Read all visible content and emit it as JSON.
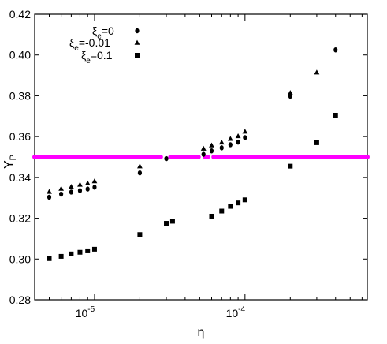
{
  "chart_data": {
    "type": "scatter",
    "xlabel": "η",
    "ylabel": "Y_P",
    "xscale": "log",
    "xlim": [
      4e-06,
      0.00065
    ],
    "ylim": [
      0.28,
      0.42
    ],
    "yticks": [
      0.28,
      0.3,
      0.32,
      0.34,
      0.36,
      0.38,
      0.4,
      0.42
    ],
    "ytick_labels": [
      "0.28",
      "0.30",
      "0.32",
      "0.34",
      "0.36",
      "0.38",
      "0.40",
      "0.42"
    ],
    "xticks": [
      {
        "value": 1e-05,
        "base": "10",
        "exp": "-5"
      },
      {
        "value": 0.0001,
        "base": "10",
        "exp": "-4"
      }
    ],
    "legend_placement": "top-left",
    "series": [
      {
        "name": "ξe=0",
        "legend": {
          "base": "ξ",
          "sub": "e",
          "rest": "=0"
        },
        "marker": "circle",
        "x": [
          5e-06,
          6e-06,
          7e-06,
          8e-06,
          9e-06,
          1e-05,
          2e-05,
          3e-05,
          5.3e-05,
          6e-05,
          7e-05,
          8e-05,
          9e-05,
          0.0001,
          0.0002,
          0.0004
        ],
        "y": [
          0.3303,
          0.3318,
          0.3328,
          0.3335,
          0.3343,
          0.3352,
          0.3422,
          0.3492,
          0.3513,
          0.353,
          0.3545,
          0.356,
          0.3573,
          0.3595,
          0.3798,
          0.4025
        ]
      },
      {
        "name": "ξe=-0.01",
        "legend": {
          "base": "ξ",
          "sub": "e",
          "rest": "=-0.01"
        },
        "marker": "triangle",
        "x": [
          5e-06,
          6e-06,
          7e-06,
          8e-06,
          9e-06,
          1e-05,
          2e-05,
          5.3e-05,
          6e-05,
          7e-05,
          8e-05,
          9e-05,
          0.0001,
          0.0002,
          0.0003
        ],
        "y": [
          0.333,
          0.3345,
          0.3355,
          0.3365,
          0.3372,
          0.3382,
          0.3455,
          0.3542,
          0.3558,
          0.3572,
          0.359,
          0.3603,
          0.3625,
          0.3815,
          0.3915
        ]
      },
      {
        "name": "ξe=0.1",
        "legend": {
          "base": "ξ",
          "sub": "e",
          "rest": "=0.1"
        },
        "marker": "square",
        "x": [
          5e-06,
          6e-06,
          7e-06,
          8e-06,
          9e-06,
          1e-05,
          2e-05,
          3e-05,
          3.3e-05,
          6e-05,
          7e-05,
          8e-05,
          9e-05,
          0.0001,
          0.0002,
          0.0003,
          0.0004
        ],
        "y": [
          0.3002,
          0.3013,
          0.3025,
          0.3033,
          0.304,
          0.3048,
          0.312,
          0.3175,
          0.3185,
          0.321,
          0.3235,
          0.3258,
          0.3275,
          0.329,
          0.3455,
          0.357,
          0.3705
        ]
      }
    ],
    "reference_line": {
      "y": 0.35,
      "color": "#ff00ff",
      "gap_ranges": [
        [
          2.75e-05,
          3.2e-05
        ],
        [
          4.9e-05,
          5.45e-05
        ],
        [
          5.65e-05,
          6.2e-05
        ]
      ]
    }
  }
}
